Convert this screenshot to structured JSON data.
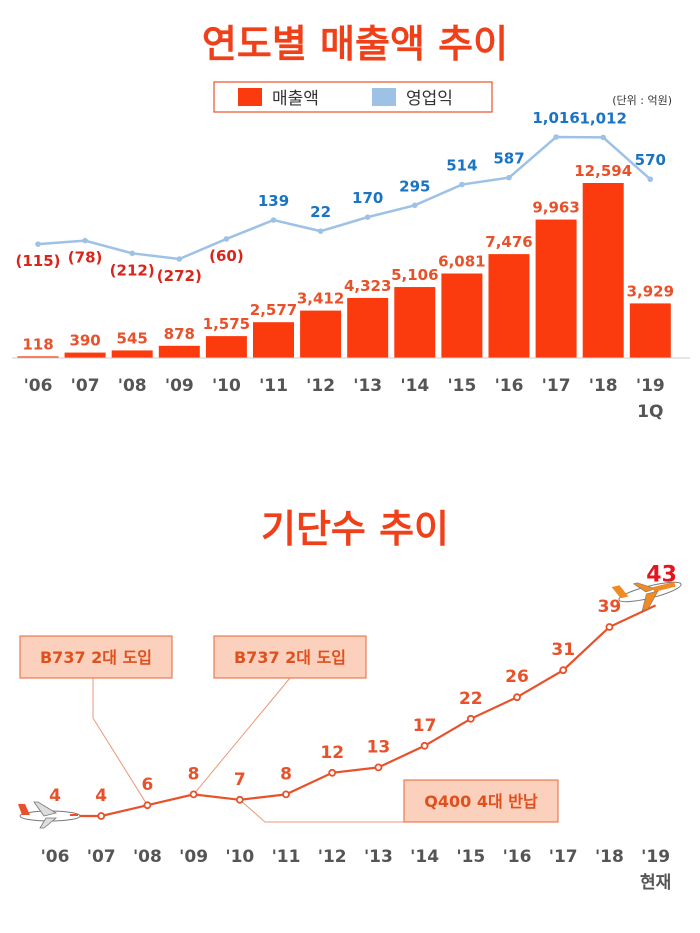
{
  "chart_data": [
    {
      "type": "bar+line",
      "title": "연도별 매출액 추이",
      "unit_note": "(단위 : 억원)",
      "legend": [
        {
          "name": "매출액",
          "color": "#fb3a0d"
        },
        {
          "name": "영업익",
          "color": "#9ec2e6"
        }
      ],
      "categories": [
        "'06",
        "'07",
        "'08",
        "'09",
        "'10",
        "'11",
        "'12",
        "'13",
        "'14",
        "'15",
        "'16",
        "'17",
        "'18",
        "'19"
      ],
      "category_sub": {
        "13": "1Q"
      },
      "series": [
        {
          "name": "매출액",
          "type": "bar",
          "values": [
            118,
            390,
            545,
            878,
            1575,
            2577,
            3412,
            4323,
            5106,
            6081,
            7476,
            9963,
            12594,
            3929
          ],
          "labels": [
            "118",
            "390",
            "545",
            "878",
            "1,575",
            "2,577",
            "3,412",
            "4,323",
            "5,106",
            "6,081",
            "7,476",
            "9,963",
            "12,594",
            "3,929"
          ]
        },
        {
          "name": "영업익",
          "type": "line",
          "values": [
            -115,
            -78,
            -212,
            -272,
            -60,
            139,
            22,
            170,
            295,
            514,
            587,
            1016,
            1012,
            570
          ],
          "labels": [
            "(115)",
            "(78)",
            "(212)",
            "(272)",
            "(60)",
            "139",
            "22",
            "170",
            "295",
            "514",
            "587",
            "1,016",
            "1,012",
            "570"
          ]
        }
      ]
    },
    {
      "type": "line",
      "title": "기단수 추이",
      "categories": [
        "'06",
        "'07",
        "'08",
        "'09",
        "'10",
        "'11",
        "'12",
        "'13",
        "'14",
        "'15",
        "'16",
        "'17",
        "'18",
        "'19"
      ],
      "category_sub": {
        "13": "현재"
      },
      "values": [
        4,
        4,
        6,
        8,
        7,
        8,
        12,
        13,
        17,
        22,
        26,
        31,
        39,
        43
      ],
      "labels": [
        "4",
        "4",
        "6",
        "8",
        "7",
        "8",
        "12",
        "13",
        "17",
        "22",
        "26",
        "31",
        "39",
        "43"
      ],
      "callouts": [
        {
          "text": "B737 2대 도입",
          "point_index": 2
        },
        {
          "text": "B737 2대 도입",
          "point_index": 3
        },
        {
          "text": "Q400 4대 반납",
          "point_index": 4
        }
      ]
    }
  ],
  "colors": {
    "accent": "#fb3a0d",
    "line_blue": "#9ec2e6",
    "label_blue": "#1a74c4",
    "label_red": "#d8261d",
    "fleet_line": "#e8512a"
  }
}
